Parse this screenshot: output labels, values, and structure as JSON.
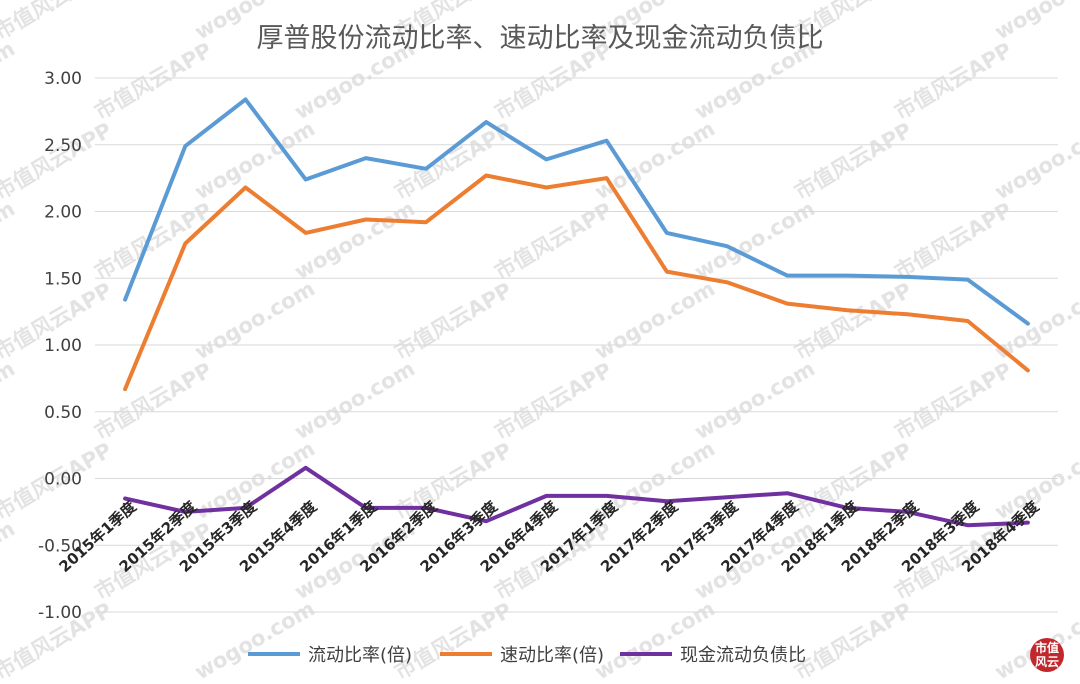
{
  "chart_data": {
    "type": "line",
    "title": "厚普股份流动比率、速动比率及现金流动负债比",
    "categories": [
      "2015年1季度",
      "2015年2季度",
      "2015年3季度",
      "2015年4季度",
      "2016年1季度",
      "2016年2季度",
      "2016年3季度",
      "2016年4季度",
      "2017年1季度",
      "2017年2季度",
      "2017年3季度",
      "2017年4季度",
      "2018年1季度",
      "2018年2季度",
      "2018年3季度",
      "2018年4季度"
    ],
    "series": [
      {
        "name": "流动比率(倍)",
        "color": "#5b9bd5",
        "values": [
          1.34,
          2.49,
          2.84,
          2.24,
          2.4,
          2.32,
          2.67,
          2.39,
          2.53,
          1.84,
          1.74,
          1.52,
          1.52,
          1.51,
          1.49,
          1.16
        ]
      },
      {
        "name": "速动比率(倍)",
        "color": "#ed7d31",
        "values": [
          0.67,
          1.76,
          2.18,
          1.84,
          1.94,
          1.92,
          2.27,
          2.18,
          2.25,
          1.55,
          1.47,
          1.31,
          1.26,
          1.23,
          1.18,
          0.81
        ]
      },
      {
        "name": "现金流动负债比",
        "color": "#7030a0",
        "values": [
          -0.15,
          -0.25,
          -0.22,
          0.08,
          -0.22,
          -0.22,
          -0.32,
          -0.13,
          -0.13,
          -0.17,
          -0.14,
          -0.11,
          -0.22,
          -0.25,
          -0.35,
          -0.33
        ]
      }
    ],
    "yticks": [
      "3.00",
      "2.50",
      "2.00",
      "1.50",
      "1.00",
      "0.50",
      "0.00",
      "-0.50",
      "-1.00"
    ],
    "ylim": [
      -1.0,
      3.0
    ],
    "grid": true,
    "legend": "bottom"
  },
  "watermark": {
    "text_a": "wogoo.com",
    "text_b": "市值风云APP"
  },
  "logo": {
    "text": "市值风云"
  }
}
